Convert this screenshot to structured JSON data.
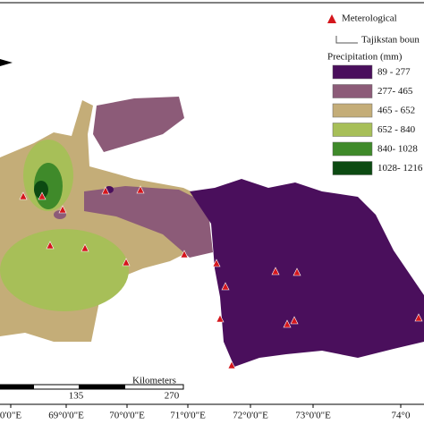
{
  "legend": {
    "station": "Meterological",
    "boundary": "Tajikstan boun",
    "title": "Precipitation (mm)",
    "classes": [
      {
        "label": "89 - 277",
        "color": "#4a0f5c"
      },
      {
        "label": "277- 465",
        "color": "#8c5b78"
      },
      {
        "label": "465 - 652",
        "color": "#c4ad78"
      },
      {
        "label": "652 - 840",
        "color": "#a7bf58"
      },
      {
        "label": "840- 1028",
        "color": "#3f8a2a"
      },
      {
        "label": "1028- 1216",
        "color": "#0c4a12"
      }
    ]
  },
  "scale": {
    "title": "Kilometers",
    "labels": [
      "135",
      "270"
    ]
  },
  "longitudes": [
    "0'0\"E",
    "69°0'0\"E",
    "70°0'0\"E",
    "71°0'0\"E",
    "72°0'0\"E",
    "73°0'0\"E",
    "74°0"
  ]
}
